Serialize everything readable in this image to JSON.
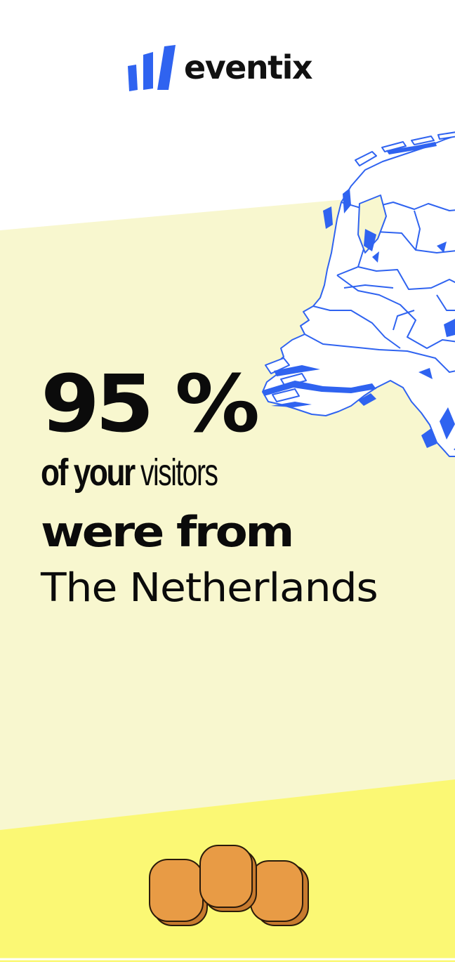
{
  "brand": {
    "name": "eventix",
    "accent_color": "#2f63f0",
    "logo_icon": "bar-chart-logo-icon"
  },
  "stat": {
    "value": "95 %",
    "line_bold": "of your",
    "line_light": "visitors",
    "line_emphasis": "were from",
    "country": "The Netherlands"
  },
  "colors": {
    "page_background": "#ffffff",
    "pale_yellow_band": "#f8f7cf",
    "bright_yellow_band": "#fbf874",
    "map_fill": "#ffffff",
    "map_stroke": "#2f63f0",
    "token_fill": "#e89b45",
    "text": "#0b0b0b"
  },
  "illustrations": {
    "map": "netherlands-map-illustration",
    "tokens": "orange-tokens-illustration"
  }
}
